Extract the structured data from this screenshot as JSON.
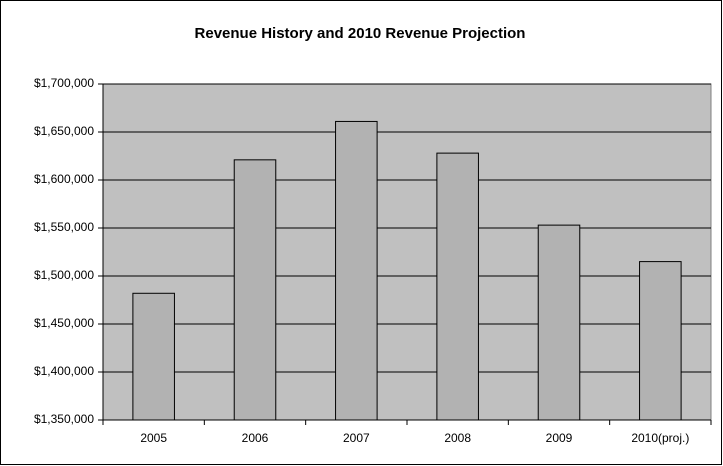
{
  "chart_data": {
    "type": "bar",
    "title": "Revenue History and 2010 Revenue Projection",
    "categories": [
      "2005",
      "2006",
      "2007",
      "2008",
      "2009",
      "2010(proj.)"
    ],
    "values": [
      1482000,
      1621000,
      1661000,
      1628000,
      1553000,
      1515000
    ],
    "color": "#b2b2b2",
    "ylim": [
      1350000,
      1700000
    ],
    "yticks": [
      {
        "value": 1350000,
        "label": "$1,350,000"
      },
      {
        "value": 1400000,
        "label": "$1,400,000"
      },
      {
        "value": 1450000,
        "label": "$1,450,000"
      },
      {
        "value": 1500000,
        "label": "$1,500,000"
      },
      {
        "value": 1550000,
        "label": "$1,550,000"
      },
      {
        "value": 1600000,
        "label": "$1,600,000"
      },
      {
        "value": 1650000,
        "label": "$1,650,000"
      },
      {
        "value": 1700000,
        "label": "$1,700,000"
      }
    ],
    "grid": true
  }
}
